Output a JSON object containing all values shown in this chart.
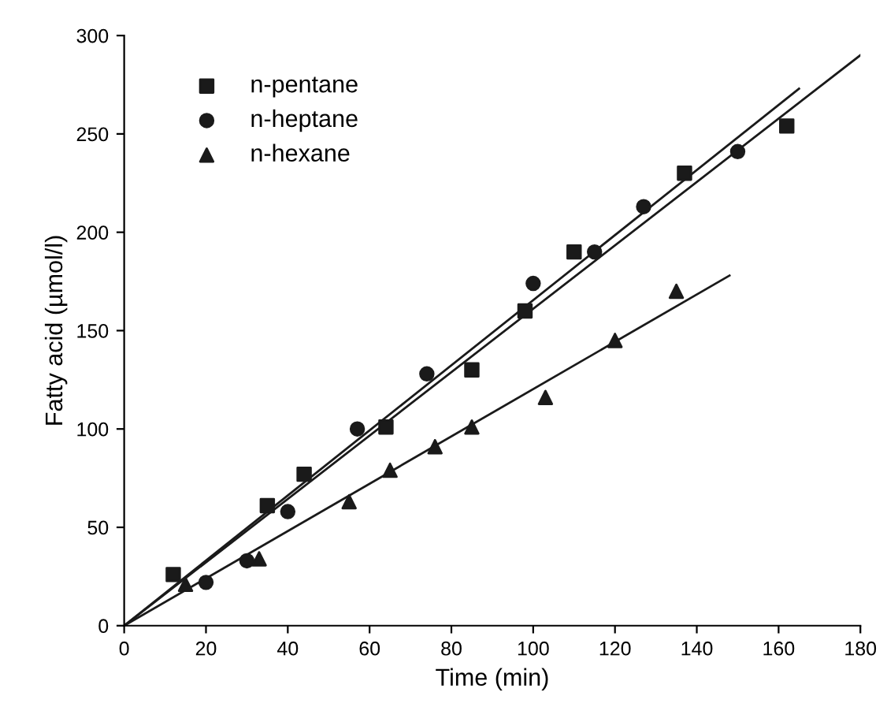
{
  "chart_data": {
    "type": "scatter",
    "xlabel": "Time (min)",
    "ylabel": "Fatty acid (µmol/l)",
    "xlim": [
      0,
      180
    ],
    "ylim": [
      0,
      300
    ],
    "xticks": [
      0,
      20,
      40,
      60,
      80,
      100,
      120,
      140,
      160,
      180
    ],
    "yticks": [
      0,
      50,
      100,
      150,
      200,
      250,
      300
    ],
    "grid": false,
    "legend": "top left",
    "series": [
      {
        "name": "n-pentane",
        "color": "#1a1a1a",
        "marker": "square",
        "x": [
          12,
          35,
          44,
          64,
          85,
          98,
          110,
          137,
          162
        ],
        "values": [
          26,
          61,
          77,
          101,
          130,
          160,
          190,
          230,
          254
        ]
      },
      {
        "name": "n-heptane",
        "color": "#1a1a1a",
        "marker": "circle",
        "x": [
          20,
          30,
          40,
          57,
          74,
          100,
          115,
          127,
          150
        ],
        "values": [
          22,
          33,
          58,
          100,
          128,
          174,
          190,
          213,
          241
        ]
      },
      {
        "name": "n-hexane",
        "color": "#1a1a1a",
        "marker": "triangle",
        "x": [
          15,
          33,
          55,
          65,
          76,
          85,
          103,
          120,
          135
        ],
        "values": [
          21,
          34,
          63,
          79,
          91,
          101,
          116,
          145,
          170
        ]
      },
      {
        "type": "line",
        "color": "#1a1a1a",
        "marker": "none",
        "x": [
          0,
          165
        ],
        "values": [
          0,
          273
        ]
      },
      {
        "type": "line",
        "color": "#1a1a1a",
        "marker": "none",
        "x": [
          0,
          180
        ],
        "values": [
          0,
          290
        ]
      },
      {
        "type": "line",
        "color": "#1a1a1a",
        "marker": "none",
        "x": [
          0,
          148
        ],
        "values": [
          0,
          178
        ]
      }
    ]
  }
}
